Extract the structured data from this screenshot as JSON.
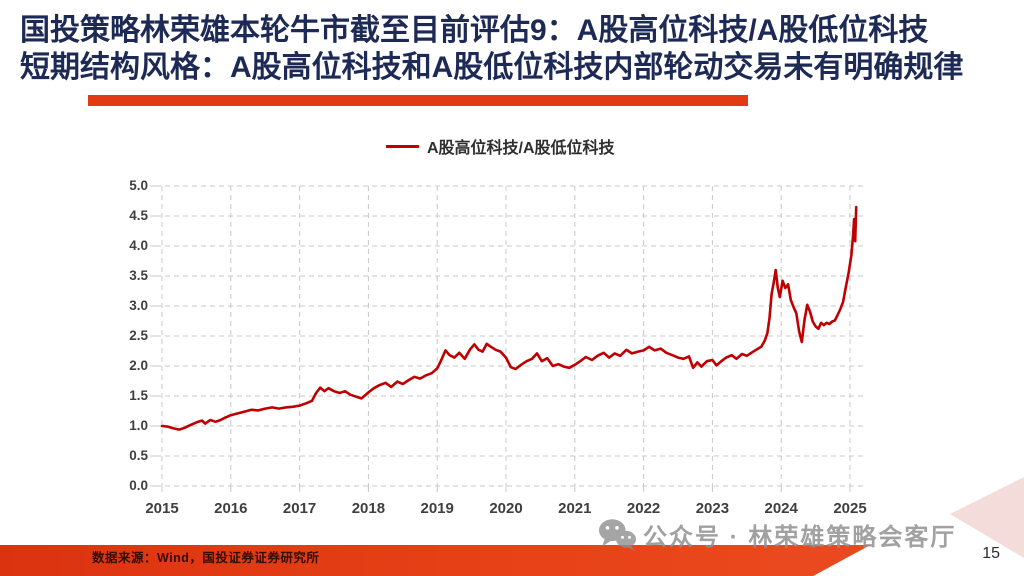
{
  "slide": {
    "title_line1": "国投策略林荣雄本轮牛市截至目前评估9：A股高位科技/A股低位科技",
    "title_line2": "短期结构风格：A股高位科技和A股低位科技内部轮动交易未有明确规律",
    "watermark_text": "公众号 · 林荣雄策略会客厅",
    "footer_source": "数据来源：Wind，国投证券证券研究所",
    "page_number": "15"
  },
  "colors": {
    "title_navy": "#1E2A56",
    "accent_red": "#E23A12",
    "series_red": "#C00000",
    "footer_red": "#E84318",
    "grid_gray": "#C9C9C9",
    "tick_label_gray": "#3F3F3F",
    "watermark_gray": "#919191",
    "corner_wedge_pink": "#F3DCDA"
  },
  "chart_data": {
    "type": "line",
    "title": "",
    "xlabel": "",
    "ylabel": "",
    "grid": true,
    "legend_position": "top-center",
    "legend": [
      "A股高位科技/A股低位科技"
    ],
    "ylim": [
      0.0,
      5.0
    ],
    "xlim": [
      2015,
      2025.25
    ],
    "y_ticks": [
      "0.0",
      "0.5",
      "1.0",
      "1.5",
      "2.0",
      "2.5",
      "3.0",
      "3.5",
      "4.0",
      "4.5",
      "5.0"
    ],
    "x_ticks": [
      "2015",
      "2016",
      "2017",
      "2018",
      "2019",
      "2020",
      "2021",
      "2022",
      "2023",
      "2024",
      "2025"
    ],
    "x": [
      2015.0,
      2015.08,
      2015.17,
      2015.25,
      2015.33,
      2015.42,
      2015.5,
      2015.58,
      2015.63,
      2015.7,
      2015.78,
      2015.85,
      2015.92,
      2016.0,
      2016.1,
      2016.2,
      2016.3,
      2016.4,
      2016.5,
      2016.6,
      2016.7,
      2016.8,
      2016.9,
      2017.0,
      2017.1,
      2017.18,
      2017.24,
      2017.3,
      2017.36,
      2017.42,
      2017.5,
      2017.58,
      2017.66,
      2017.74,
      2017.82,
      2017.9,
      2018.0,
      2018.08,
      2018.16,
      2018.25,
      2018.33,
      2018.42,
      2018.5,
      2018.58,
      2018.67,
      2018.75,
      2018.83,
      2018.92,
      2019.0,
      2019.06,
      2019.12,
      2019.18,
      2019.25,
      2019.32,
      2019.4,
      2019.48,
      2019.54,
      2019.6,
      2019.66,
      2019.72,
      2019.78,
      2019.85,
      2019.92,
      2020.0,
      2020.07,
      2020.14,
      2020.22,
      2020.3,
      2020.38,
      2020.45,
      2020.52,
      2020.6,
      2020.68,
      2020.76,
      2020.84,
      2020.92,
      2021.0,
      2021.08,
      2021.16,
      2021.25,
      2021.33,
      2021.42,
      2021.5,
      2021.58,
      2021.66,
      2021.75,
      2021.83,
      2021.92,
      2022.0,
      2022.08,
      2022.16,
      2022.25,
      2022.33,
      2022.42,
      2022.5,
      2022.58,
      2022.66,
      2022.72,
      2022.78,
      2022.84,
      2022.92,
      2023.0,
      2023.06,
      2023.13,
      2023.2,
      2023.28,
      2023.35,
      2023.43,
      2023.5,
      2023.58,
      2023.65,
      2023.71,
      2023.76,
      2023.8,
      2023.83,
      2023.86,
      2023.89,
      2023.92,
      2023.95,
      2023.98,
      2024.02,
      2024.06,
      2024.1,
      2024.14,
      2024.18,
      2024.22,
      2024.26,
      2024.3,
      2024.34,
      2024.38,
      2024.42,
      2024.46,
      2024.5,
      2024.54,
      2024.58,
      2024.62,
      2024.66,
      2024.7,
      2024.74,
      2024.78,
      2024.82,
      2024.86,
      2024.9,
      2024.94,
      2024.98,
      2025.02,
      2025.045,
      2025.06,
      2025.075,
      2025.09
    ],
    "series": [
      {
        "name": "A股高位科技/A股低位科技",
        "color": "#C00000",
        "values": [
          1.0,
          0.99,
          0.96,
          0.94,
          0.97,
          1.02,
          1.06,
          1.09,
          1.04,
          1.1,
          1.07,
          1.1,
          1.14,
          1.18,
          1.21,
          1.24,
          1.27,
          1.26,
          1.29,
          1.31,
          1.29,
          1.31,
          1.32,
          1.34,
          1.38,
          1.42,
          1.55,
          1.64,
          1.58,
          1.63,
          1.58,
          1.55,
          1.58,
          1.52,
          1.49,
          1.46,
          1.56,
          1.63,
          1.68,
          1.72,
          1.65,
          1.74,
          1.7,
          1.76,
          1.82,
          1.79,
          1.84,
          1.88,
          1.96,
          2.1,
          2.26,
          2.18,
          2.14,
          2.22,
          2.12,
          2.28,
          2.36,
          2.27,
          2.24,
          2.37,
          2.32,
          2.27,
          2.24,
          2.14,
          1.98,
          1.95,
          2.02,
          2.08,
          2.12,
          2.21,
          2.08,
          2.13,
          2.0,
          2.03,
          1.99,
          1.97,
          2.02,
          2.08,
          2.15,
          2.1,
          2.17,
          2.22,
          2.14,
          2.21,
          2.17,
          2.27,
          2.21,
          2.24,
          2.26,
          2.32,
          2.26,
          2.29,
          2.22,
          2.18,
          2.14,
          2.12,
          2.16,
          1.97,
          2.06,
          1.99,
          2.08,
          2.1,
          2.01,
          2.08,
          2.14,
          2.18,
          2.12,
          2.2,
          2.17,
          2.23,
          2.28,
          2.32,
          2.42,
          2.55,
          2.8,
          3.2,
          3.38,
          3.6,
          3.3,
          3.15,
          3.42,
          3.3,
          3.36,
          3.1,
          2.98,
          2.88,
          2.58,
          2.4,
          2.78,
          3.02,
          2.9,
          2.74,
          2.66,
          2.62,
          2.72,
          2.68,
          2.72,
          2.7,
          2.74,
          2.76,
          2.85,
          2.95,
          3.07,
          3.32,
          3.55,
          3.85,
          4.18,
          4.45,
          4.08,
          4.65
        ]
      }
    ]
  }
}
